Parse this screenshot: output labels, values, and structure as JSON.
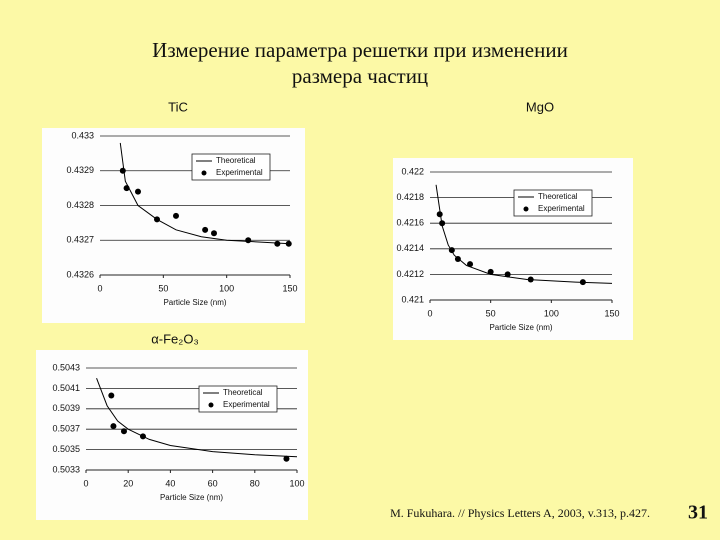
{
  "slide": {
    "title": [
      "Измерение параметра решетки при изменении",
      "размера частиц"
    ],
    "citation": "M. Fukuhara. // Physics Letters A, 2003, v.313, p.427.",
    "page": "31"
  },
  "chart_data": [
    {
      "type": "scatter",
      "title": "TiC",
      "x_label": "Particle Size (nm)",
      "grid": true,
      "legend": "upper right",
      "xlim": [
        0,
        150
      ],
      "xticks": [
        0,
        50,
        100,
        150
      ],
      "ylim": [
        0.4326,
        0.433
      ],
      "yticks": [
        0.4326,
        0.4327,
        0.4328,
        0.4329,
        0.433
      ],
      "series": [
        {
          "name": "Theoretical",
          "color": "#000000",
          "mode": "line",
          "x": [
            16,
            20,
            30,
            45,
            60,
            80,
            100,
            150
          ],
          "values": [
            0.43298,
            0.43287,
            0.4328,
            0.43276,
            0.43273,
            0.43271,
            0.4327,
            0.43269
          ]
        },
        {
          "name": "Experimental",
          "color": "#000000",
          "mode": "markers",
          "x": [
            18,
            21,
            30,
            45,
            60,
            83,
            90,
            117,
            140,
            149
          ],
          "values": [
            0.4329,
            0.43285,
            0.43284,
            0.43276,
            0.43277,
            0.43273,
            0.43272,
            0.4327,
            0.43269,
            0.43269
          ]
        }
      ]
    },
    {
      "type": "scatter",
      "title": "MgO",
      "x_label": "Particle Size (nm)",
      "grid": true,
      "legend": "upper right",
      "xlim": [
        0,
        150
      ],
      "xticks": [
        0,
        50,
        100,
        150
      ],
      "ylim": [
        0.421,
        0.422
      ],
      "yticks": [
        0.421,
        0.4212,
        0.4214,
        0.4216,
        0.4218,
        0.422
      ],
      "series": [
        {
          "name": "Theoretical",
          "color": "#000000",
          "mode": "line",
          "x": [
            5,
            10,
            15,
            20,
            30,
            50,
            80,
            120,
            150
          ],
          "values": [
            0.4219,
            0.42158,
            0.42143,
            0.42135,
            0.42127,
            0.4212,
            0.42116,
            0.42114,
            0.42113
          ]
        },
        {
          "name": "Experimental",
          "color": "#000000",
          "mode": "markers",
          "x": [
            8,
            10,
            18,
            23,
            33,
            50,
            64,
            83,
            126
          ],
          "values": [
            0.42167,
            0.4216,
            0.42139,
            0.42132,
            0.42128,
            0.42122,
            0.4212,
            0.42116,
            0.42114
          ]
        }
      ]
    },
    {
      "type": "scatter",
      "title": "α-Fe₂O₃",
      "x_label": "Particle Size (nm)",
      "grid": true,
      "legend": "upper right",
      "xlim": [
        0,
        100
      ],
      "xticks": [
        0,
        20,
        40,
        60,
        80,
        100
      ],
      "ylim": [
        0.5033,
        0.5043
      ],
      "yticks": [
        0.5033,
        0.5035,
        0.5037,
        0.5039,
        0.5041,
        0.5043
      ],
      "series": [
        {
          "name": "Theoretical",
          "color": "#000000",
          "mode": "line",
          "x": [
            5,
            10,
            15,
            20,
            30,
            40,
            60,
            80,
            100
          ],
          "values": [
            0.5042,
            0.50393,
            0.50378,
            0.5037,
            0.5036,
            0.50354,
            0.50348,
            0.50345,
            0.50343
          ]
        },
        {
          "name": "Experimental",
          "color": "#000000",
          "mode": "markers",
          "x": [
            12,
            13,
            18,
            27,
            95
          ],
          "values": [
            0.50403,
            0.50373,
            0.50368,
            0.50363,
            0.50341
          ]
        }
      ]
    }
  ]
}
